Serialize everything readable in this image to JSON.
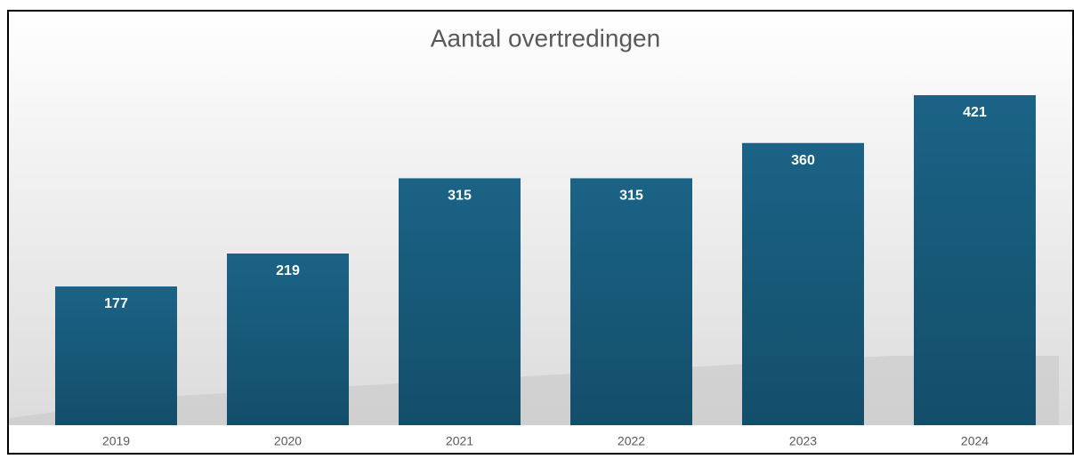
{
  "chart_data": {
    "type": "bar",
    "title": "Aantal overtredingen",
    "categories": [
      "2019",
      "2020",
      "2021",
      "2022",
      "2023",
      "2024"
    ],
    "values": [
      177,
      219,
      315,
      315,
      360,
      421
    ],
    "color": "#195d7e"
  }
}
